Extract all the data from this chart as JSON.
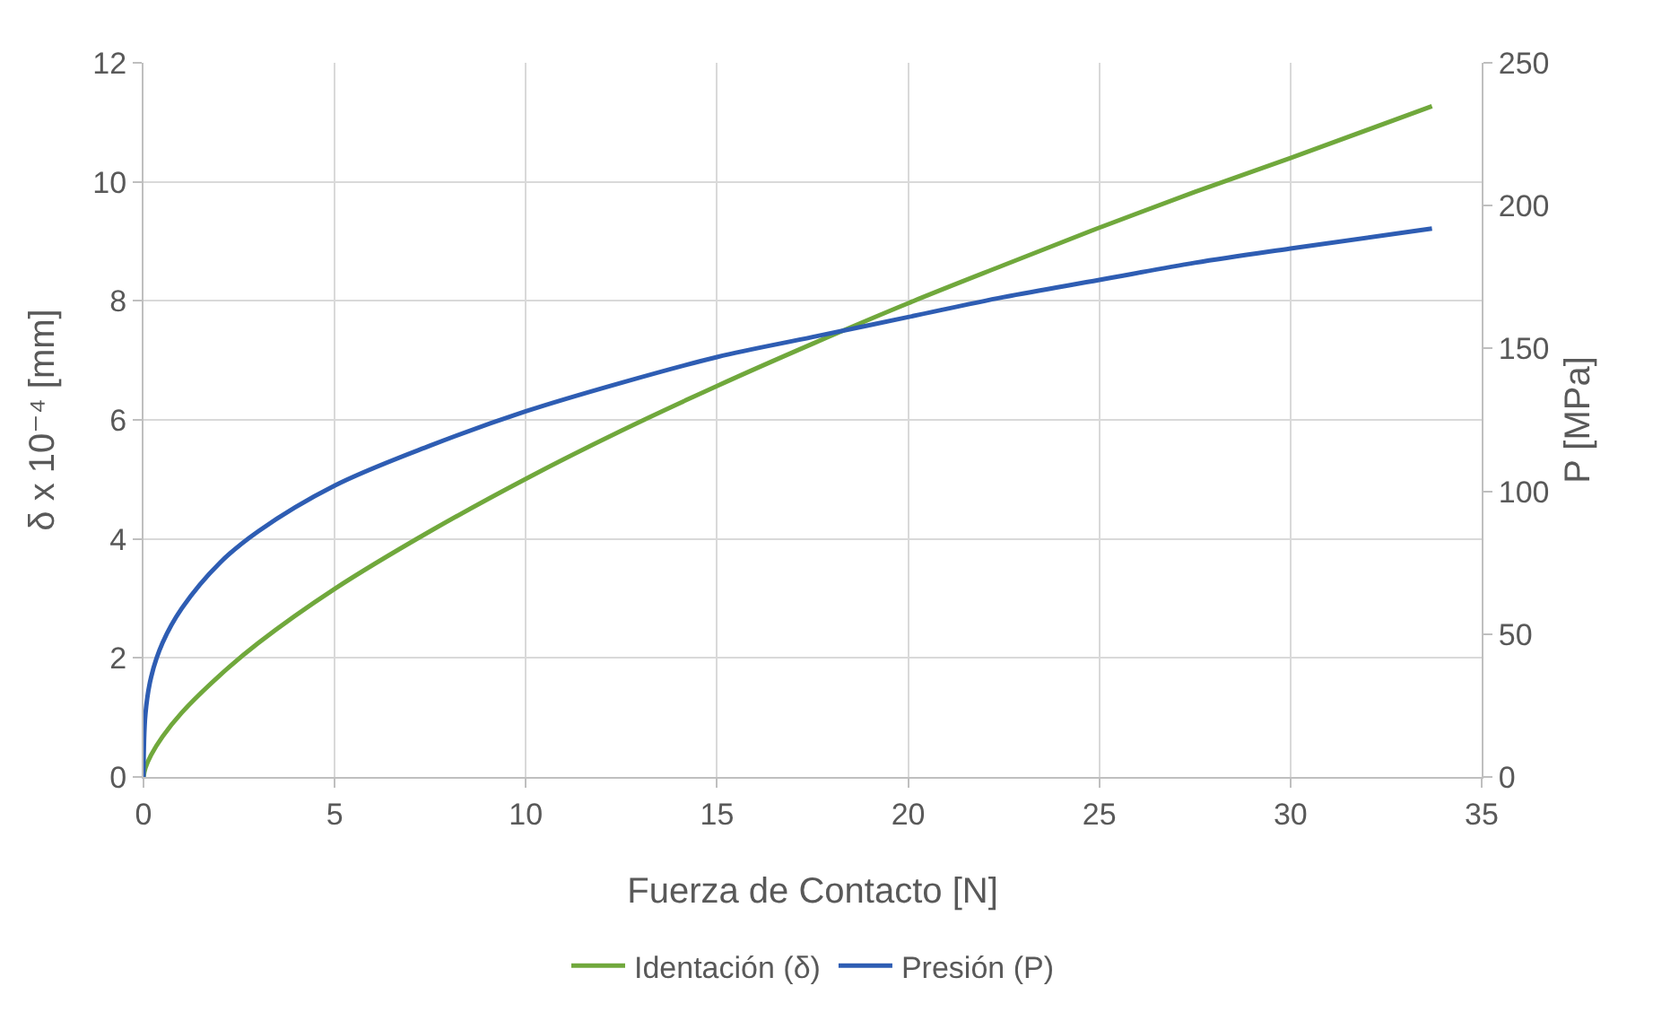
{
  "chart_data": {
    "type": "line",
    "xlabel": "Fuerza de Contacto [N]",
    "ylabel": "δ x 10⁻⁴ [mm]",
    "y2label": "P [MPa]",
    "x": [
      0,
      0.05,
      0.2,
      0.5,
      1,
      2,
      3,
      5,
      7.5,
      10,
      12.5,
      15,
      17.5,
      20,
      22.5,
      25,
      27.5,
      30,
      33.7
    ],
    "series": [
      {
        "name": "Identación (δ)",
        "color": "#70a83c",
        "values": [
          0,
          0.15,
          0.37,
          0.68,
          1.08,
          1.71,
          2.25,
          3.16,
          4.13,
          5.01,
          5.82,
          6.57,
          7.28,
          7.96,
          8.6,
          9.23,
          9.83,
          10.4,
          11.27
        ]
      },
      {
        "name": "Presión (P)",
        "color": "#2e5db3",
        "axis": "y2",
        "values": [
          0,
          22,
          35,
          47,
          59,
          75,
          86,
          102,
          116,
          128,
          138,
          147,
          154,
          161,
          168,
          174,
          180,
          185,
          192
        ]
      }
    ],
    "xlim": [
      0,
      35
    ],
    "xticks": [
      0,
      5,
      10,
      15,
      20,
      25,
      30,
      35
    ],
    "ylim": [
      0,
      12
    ],
    "yticks": [
      0,
      2,
      4,
      6,
      8,
      10,
      12
    ],
    "y2lim": [
      0,
      250
    ],
    "y2ticks": [
      0,
      50,
      100,
      150,
      200,
      250
    ],
    "grid": true,
    "legend": "bottom",
    "marker": "none",
    "line_style": "solid"
  }
}
